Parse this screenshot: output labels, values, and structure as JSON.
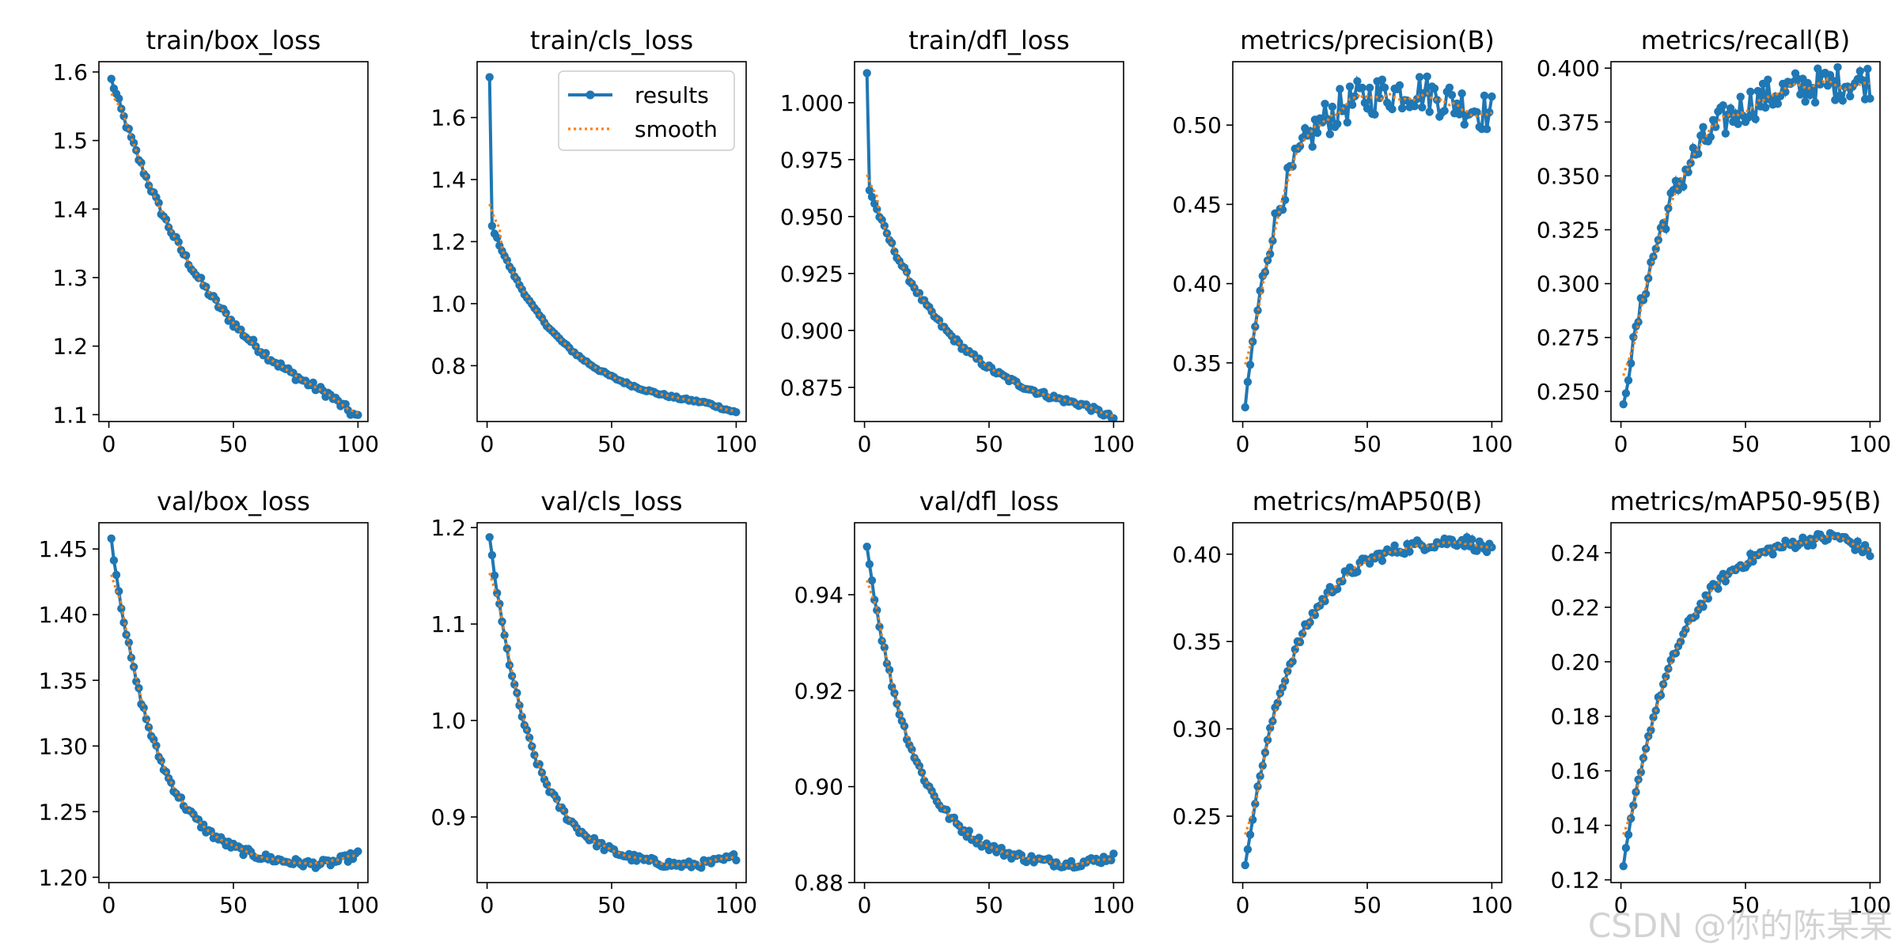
{
  "colors": {
    "results": "#1f77b4",
    "smooth": "#ff7f0e"
  },
  "watermark": "CSDN @你的陈某某",
  "legend": {
    "results": "results",
    "smooth": "smooth"
  },
  "chart_data": [
    {
      "type": "line",
      "title": "train/box_loss",
      "xlim": [
        -4,
        104
      ],
      "ylim": [
        1.09,
        1.615
      ],
      "xticks": [
        0,
        50,
        100
      ],
      "yticks": [
        1.1,
        1.2,
        1.3,
        1.4,
        1.5,
        1.6
      ],
      "ytick_decimals": 1,
      "series": [
        {
          "name": "results",
          "kind": "results"
        },
        {
          "name": "smooth",
          "kind": "smooth"
        }
      ],
      "curve": {
        "start": 1.59,
        "end": 1.112,
        "shape": "decay",
        "k": 2.2,
        "noise": 0.006,
        "mode": "loss"
      },
      "show_legend": false
    },
    {
      "type": "line",
      "title": "train/cls_loss",
      "xlim": [
        -4,
        104
      ],
      "ylim": [
        0.62,
        1.78
      ],
      "xticks": [
        0,
        50,
        100
      ],
      "yticks": [
        0.8,
        1.0,
        1.2,
        1.4,
        1.6
      ],
      "ytick_decimals": 1,
      "series": [
        {
          "name": "results",
          "kind": "results"
        },
        {
          "name": "smooth",
          "kind": "smooth"
        }
      ],
      "curve": {
        "start": 1.27,
        "end": 0.67,
        "first": 1.73,
        "shape": "decay",
        "k": 3.4,
        "noise": 0.004,
        "mode": "loss"
      },
      "show_legend": true
    },
    {
      "type": "line",
      "title": "train/dfl_loss",
      "xlim": [
        -4,
        104
      ],
      "ylim": [
        0.86,
        1.018
      ],
      "xticks": [
        0,
        50,
        100
      ],
      "yticks": [
        0.875,
        0.9,
        0.925,
        0.95,
        0.975,
        1.0
      ],
      "ytick_decimals": 3,
      "series": [
        {
          "name": "results",
          "kind": "results"
        },
        {
          "name": "smooth",
          "kind": "smooth"
        }
      ],
      "curve": {
        "start": 0.965,
        "end": 0.865,
        "first": 1.013,
        "shape": "decay",
        "k": 3.0,
        "noise": 0.0012,
        "mode": "loss"
      },
      "show_legend": false
    },
    {
      "type": "line",
      "title": "metrics/precision(B)",
      "xlim": [
        -4,
        104
      ],
      "ylim": [
        0.313,
        0.54
      ],
      "xticks": [
        0,
        50,
        100
      ],
      "yticks": [
        0.35,
        0.4,
        0.45,
        0.5
      ],
      "ytick_decimals": 2,
      "series": [
        {
          "name": "results",
          "kind": "results"
        },
        {
          "name": "smooth",
          "kind": "smooth"
        }
      ],
      "curve": {
        "start": 0.322,
        "end": 0.518,
        "shape": "rise",
        "k": 5.0,
        "noise": 0.009,
        "mode": "metric_peak",
        "peak": 0.522,
        "peak_at": 70,
        "tail": 0.507
      },
      "show_legend": false
    },
    {
      "type": "line",
      "title": "metrics/recall(B)",
      "xlim": [
        -4,
        104
      ],
      "ylim": [
        0.236,
        0.403
      ],
      "xticks": [
        0,
        50,
        100
      ],
      "yticks": [
        0.25,
        0.275,
        0.3,
        0.325,
        0.35,
        0.375,
        0.4
      ],
      "ytick_decimals": 3,
      "series": [
        {
          "name": "results",
          "kind": "results"
        },
        {
          "name": "smooth",
          "kind": "smooth"
        }
      ],
      "curve": {
        "start": 0.244,
        "end": 0.394,
        "shape": "rise",
        "k": 5.0,
        "noise": 0.006,
        "mode": "metric"
      },
      "show_legend": false
    },
    {
      "type": "line",
      "title": "val/box_loss",
      "xlim": [
        -4,
        104
      ],
      "ylim": [
        1.196,
        1.47
      ],
      "xticks": [
        0,
        50,
        100
      ],
      "yticks": [
        1.2,
        1.25,
        1.3,
        1.35,
        1.4,
        1.45
      ],
      "ytick_decimals": 2,
      "series": [
        {
          "name": "results",
          "kind": "results"
        },
        {
          "name": "smooth",
          "kind": "smooth"
        }
      ],
      "curve": {
        "start": 1.458,
        "end": 1.21,
        "shape": "ushape",
        "k": 4.6,
        "noise": 0.003,
        "mode": "loss",
        "min_at": 82,
        "end_val": 1.218
      },
      "show_legend": false
    },
    {
      "type": "line",
      "title": "val/cls_loss",
      "xlim": [
        -4,
        104
      ],
      "ylim": [
        0.832,
        1.205
      ],
      "xticks": [
        0,
        50,
        100
      ],
      "yticks": [
        0.9,
        1.0,
        1.1,
        1.2
      ],
      "ytick_decimals": 1,
      "series": [
        {
          "name": "results",
          "kind": "results"
        },
        {
          "name": "smooth",
          "kind": "smooth"
        }
      ],
      "curve": {
        "start": 1.19,
        "end": 0.85,
        "shape": "ushape",
        "k": 4.6,
        "noise": 0.004,
        "mode": "loss",
        "min_at": 78,
        "end_val": 0.859
      },
      "show_legend": false
    },
    {
      "type": "line",
      "title": "val/dfl_loss",
      "xlim": [
        -4,
        104
      ],
      "ylim": [
        0.88,
        0.955
      ],
      "xticks": [
        0,
        50,
        100
      ],
      "yticks": [
        0.88,
        0.9,
        0.92,
        0.94
      ],
      "ytick_decimals": 2,
      "series": [
        {
          "name": "results",
          "kind": "results"
        },
        {
          "name": "smooth",
          "kind": "smooth"
        }
      ],
      "curve": {
        "start": 0.95,
        "end": 0.884,
        "shape": "ushape",
        "k": 4.4,
        "noise": 0.0009,
        "mode": "loss",
        "min_at": 80,
        "end_val": 0.8855
      },
      "show_legend": false
    },
    {
      "type": "line",
      "title": "metrics/mAP50(B)",
      "xlim": [
        -4,
        104
      ],
      "ylim": [
        0.212,
        0.418
      ],
      "xticks": [
        0,
        50,
        100
      ],
      "yticks": [
        0.25,
        0.3,
        0.35,
        0.4
      ],
      "ytick_decimals": 2,
      "series": [
        {
          "name": "results",
          "kind": "results"
        },
        {
          "name": "smooth",
          "kind": "smooth"
        }
      ],
      "curve": {
        "start": 0.222,
        "end": 0.402,
        "shape": "rise",
        "k": 4.6,
        "noise": 0.0025,
        "mode": "metric_peak",
        "peak": 0.408,
        "peak_at": 88,
        "tail": 0.402
      },
      "show_legend": false
    },
    {
      "type": "line",
      "title": "metrics/mAP50-95(B)",
      "xlim": [
        -4,
        104
      ],
      "ylim": [
        0.119,
        0.251
      ],
      "xticks": [
        0,
        50,
        100
      ],
      "yticks": [
        0.12,
        0.14,
        0.16,
        0.18,
        0.2,
        0.22,
        0.24
      ],
      "ytick_decimals": 2,
      "series": [
        {
          "name": "results",
          "kind": "results"
        },
        {
          "name": "smooth",
          "kind": "smooth"
        }
      ],
      "curve": {
        "start": 0.125,
        "end": 0.24,
        "shape": "rise",
        "k": 4.2,
        "noise": 0.0015,
        "mode": "metric_peak",
        "peak": 0.246,
        "peak_at": 87,
        "tail": 0.24
      },
      "show_legend": false
    }
  ]
}
